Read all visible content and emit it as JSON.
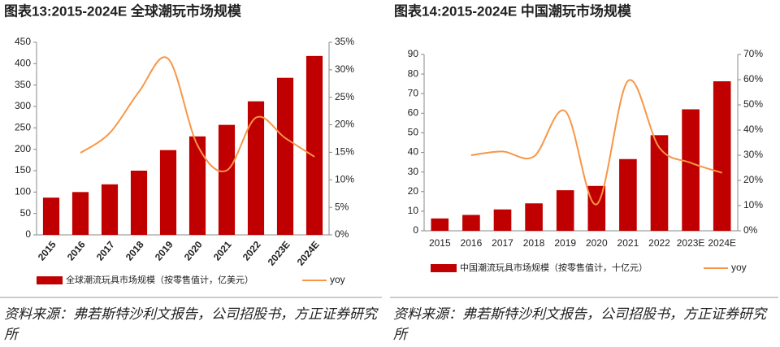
{
  "chart_data": [
    {
      "type": "bar",
      "title": "图表13:2015-2024E 全球潮玩市场规模",
      "categories": [
        "2015",
        "2016",
        "2017",
        "2018",
        "2019",
        "2020",
        "2021",
        "2022",
        "2023E",
        "2024E"
      ],
      "series": [
        {
          "name": "全球潮流玩具市场规模（按零售值计，亿美元）",
          "color": "#c00000",
          "type": "bar",
          "values": [
            87,
            100,
            118,
            150,
            198,
            230,
            257,
            312,
            367,
            418
          ]
        },
        {
          "name": "yoy",
          "color": "#f79646",
          "type": "line",
          "axis": "y2",
          "values": [
            null,
            14.9,
            18.5,
            26,
            32,
            16.3,
            11.7,
            21.3,
            17.6,
            14.2
          ]
        }
      ],
      "ylim": [
        0,
        450
      ],
      "yticks": [
        0,
        50,
        100,
        150,
        200,
        250,
        300,
        350,
        400,
        450
      ],
      "y2lim": [
        0,
        35
      ],
      "y2ticks": [
        {
          "value": 0,
          "label": "0%"
        },
        {
          "value": 5,
          "label": "5%"
        },
        {
          "value": 10,
          "label": "10%"
        },
        {
          "value": 15,
          "label": "15%"
        },
        {
          "value": 20,
          "label": "20%"
        },
        {
          "value": 25,
          "label": "25%"
        },
        {
          "value": 30,
          "label": "30%"
        },
        {
          "value": 35,
          "label": "35%"
        }
      ],
      "source": "资料来源：弗若斯特沙利文报告，公司招股书，方正证券研究所"
    },
    {
      "type": "bar",
      "title": "图表14:2015-2024E 中国潮玩市场规模",
      "categories": [
        "2015",
        "2016",
        "2017",
        "2018",
        "2019",
        "2020",
        "2021",
        "2022",
        "2023E",
        "2024E"
      ],
      "series": [
        {
          "name": "中国潮流玩具市场规模（按零售值计，十亿元）",
          "color": "#c00000",
          "type": "bar",
          "values": [
            6.3,
            8.1,
            10.9,
            14.0,
            20.7,
            22.9,
            36.6,
            48.8,
            62.0,
            76.3
          ]
        },
        {
          "name": "yoy",
          "color": "#f79646",
          "type": "line",
          "axis": "y2",
          "values": [
            null,
            30,
            31.5,
            29.5,
            47.5,
            10.5,
            59.5,
            33,
            27,
            23
          ]
        }
      ],
      "ylim": [
        0,
        90
      ],
      "yticks": [
        0,
        10,
        20,
        30,
        40,
        50,
        60,
        70,
        80,
        90
      ],
      "y2lim": [
        0,
        70
      ],
      "y2ticks": [
        {
          "value": 0,
          "label": "0%"
        },
        {
          "value": 10,
          "label": "10%"
        },
        {
          "value": 20,
          "label": "20%"
        },
        {
          "value": 30,
          "label": "30%"
        },
        {
          "value": 40,
          "label": "40%"
        },
        {
          "value": 50,
          "label": "50%"
        },
        {
          "value": 60,
          "label": "60%"
        },
        {
          "value": 70,
          "label": "70%"
        }
      ],
      "source": "资料来源：弗若斯特沙利文报告，公司招股书，方正证券研究所"
    }
  ]
}
